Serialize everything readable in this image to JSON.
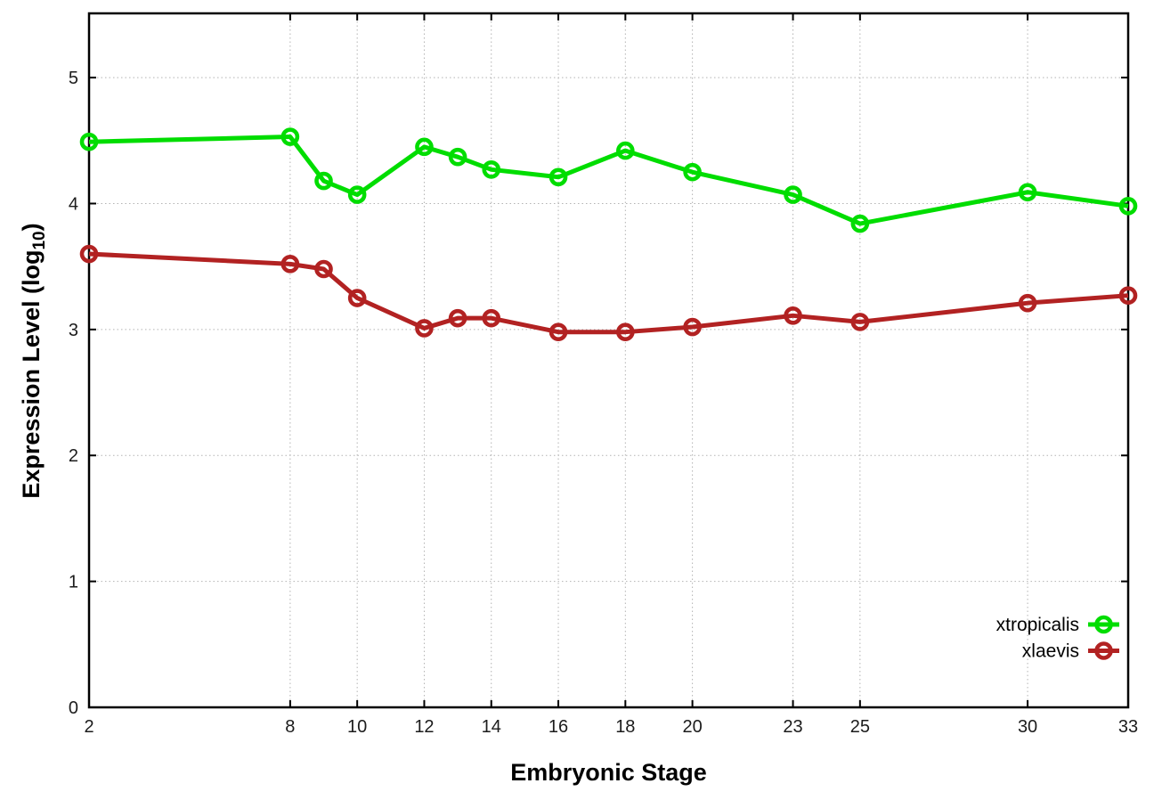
{
  "figure": {
    "background": "#ffffff",
    "border_color": "#000000",
    "grid_color": "#b3b3b3"
  },
  "axes": {
    "x": {
      "label": "Embryonic Stage",
      "ticks": [
        2,
        8,
        10,
        12,
        14,
        16,
        18,
        20,
        23,
        25,
        30,
        33
      ]
    },
    "y": {
      "label_prefix": "Expression Level (log",
      "label_sub": "10",
      "label_suffix": ")",
      "ticks": [
        0,
        1,
        2,
        3,
        4,
        5
      ]
    }
  },
  "legend": {
    "position": "bottom-right-inside",
    "entries": [
      "xtropicalis",
      "xlaevis"
    ]
  },
  "chart_data": {
    "type": "line",
    "xlabel": "Embryonic Stage",
    "ylabel": "Expression Level (log10)",
    "x": [
      2,
      8,
      9,
      10,
      12,
      13,
      14,
      16,
      18,
      20,
      23,
      25,
      30,
      33
    ],
    "x_ticks": [
      2,
      8,
      10,
      12,
      14,
      16,
      18,
      20,
      23,
      25,
      30,
      33
    ],
    "y_ticks": [
      0,
      1,
      2,
      3,
      4,
      5
    ],
    "xlim": [
      2,
      33
    ],
    "ylim": [
      0,
      5.51
    ],
    "grid": true,
    "legend_position": "bottom-right",
    "series": [
      {
        "name": "xtropicalis",
        "color": "#00dd00",
        "marker": "open-circle",
        "values": [
          4.49,
          4.53,
          4.18,
          4.07,
          4.45,
          4.37,
          4.27,
          4.21,
          4.42,
          4.25,
          4.07,
          3.84,
          4.09,
          3.98
        ]
      },
      {
        "name": "xlaevis",
        "color": "#b22222",
        "marker": "open-circle",
        "values": [
          3.6,
          3.52,
          3.48,
          3.25,
          3.01,
          3.09,
          3.09,
          2.98,
          2.98,
          3.02,
          3.11,
          3.06,
          3.21,
          3.27
        ]
      }
    ]
  }
}
